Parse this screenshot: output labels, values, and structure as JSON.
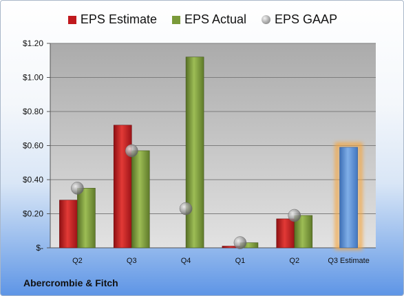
{
  "chart_data": {
    "type": "bar",
    "categories": [
      "Q2",
      "Q3",
      "Q4",
      "Q1",
      "Q2",
      "Q3 Estimate"
    ],
    "series": [
      {
        "name": "EPS Estimate",
        "color": "#c0191e",
        "values": [
          0.28,
          0.72,
          null,
          0.01,
          0.17,
          null
        ]
      },
      {
        "name": "EPS Actual",
        "color": "#7a9a3a",
        "values": [
          0.35,
          0.57,
          1.12,
          0.03,
          0.19,
          null
        ]
      },
      {
        "name": "EPS GAAP",
        "color": "#9a9a9a",
        "marker": "circle",
        "values": [
          0.35,
          0.57,
          0.23,
          0.03,
          0.19,
          null
        ]
      }
    ],
    "estimate": {
      "category": "Q3 Estimate",
      "value": 0.59,
      "color": "#5a8fd8",
      "highlight": "#f5a742"
    },
    "ylim": [
      0,
      1.2
    ],
    "yticks": [
      {
        "value": 0,
        "label": "$-"
      },
      {
        "value": 0.2,
        "label": "$0.20"
      },
      {
        "value": 0.4,
        "label": "$0.40"
      },
      {
        "value": 0.6,
        "label": "$0.60"
      },
      {
        "value": 0.8,
        "label": "$0.80"
      },
      {
        "value": 1.0,
        "label": "$1.00"
      },
      {
        "value": 1.2,
        "label": "$1.20"
      }
    ],
    "grid": true,
    "legend_position": "top"
  },
  "legend": [
    {
      "label": "EPS Estimate",
      "color": "#c0191e"
    },
    {
      "label": "EPS Actual",
      "color": "#7a9a3a"
    },
    {
      "label": "EPS GAAP",
      "icon": "gray-sphere-icon"
    }
  ],
  "company_name": "Abercrombie & Fitch"
}
